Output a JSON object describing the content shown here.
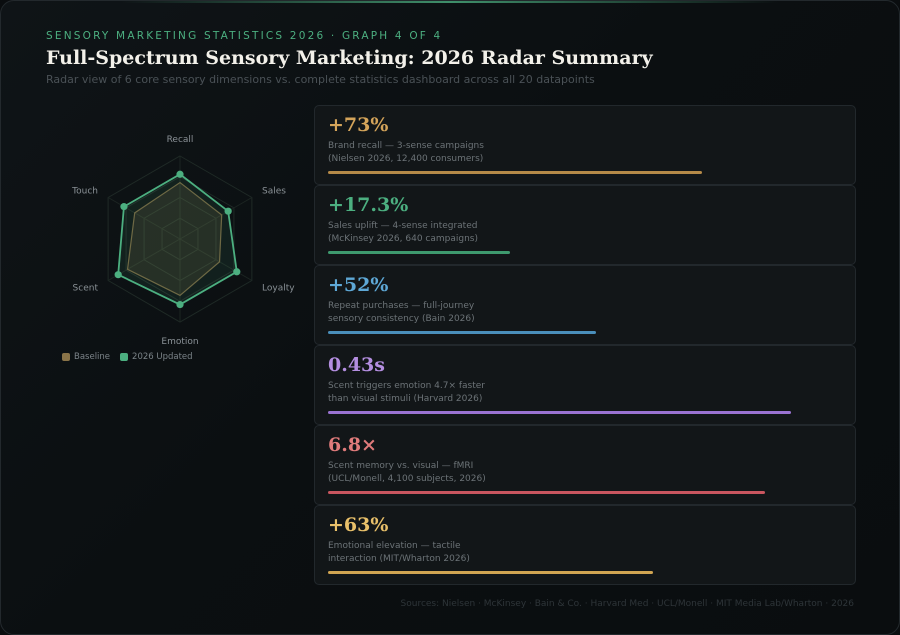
{
  "header": {
    "eyebrow": "SENSORY MARKETING STATISTICS 2026 · GRAPH 4 OF 4",
    "title": "Full-Spectrum Sensory Marketing: 2026 Radar Summary",
    "subtitle": "Radar view of 6 core sensory dimensions vs. complete statistics dashboard across all 20 datapoints"
  },
  "chart_data": [
    {
      "type": "radar",
      "categories": [
        "Recall",
        "Sales",
        "Loyalty",
        "Emotion",
        "Scent",
        "Touch"
      ],
      "range": [
        0,
        100
      ],
      "rings": 4,
      "series": [
        {
          "name": "Baseline",
          "values": [
            68,
            58,
            55,
            68,
            73,
            63
          ],
          "color": "#8a7448"
        },
        {
          "name": "2026 Updated",
          "values": [
            78,
            67,
            79,
            79,
            86,
            78
          ],
          "color": "#4caf80"
        }
      ],
      "legend_position": "bottom-left"
    },
    {
      "type": "bar",
      "orientation": "horizontal",
      "cards": [
        {
          "value": "+73%",
          "desc_line1": "Brand recall — 3-sense campaigns",
          "desc_line2": "(Nielsen 2026, 12,400 consumers)",
          "bar_fraction": 0.72,
          "color": "#d4a45a",
          "bar_color": "#b58a48"
        },
        {
          "value": "+17.3%",
          "desc_line1": "Sales uplift — 4-sense integrated",
          "desc_line2": "(McKinsey 2026, 640 campaigns)",
          "bar_fraction": 0.35,
          "color": "#4caf80",
          "bar_color": "#3e9a6e"
        },
        {
          "value": "+52%",
          "desc_line1": "Repeat purchases — full-journey",
          "desc_line2": "sensory consistency (Bain 2026)",
          "bar_fraction": 0.515,
          "color": "#5ea8d6",
          "bar_color": "#4a8fbb"
        },
        {
          "value": "0.43s",
          "desc_line1": "Scent triggers emotion 4.7× faster",
          "desc_line2": "than visual stimuli (Harvard 2026)",
          "bar_fraction": 0.89,
          "color": "#b48ee0",
          "bar_color": "#9a73d2"
        },
        {
          "value": "6.8×",
          "desc_line1": "Scent memory vs. visual — fMRI",
          "desc_line2": "(UCL/Monell, 4,100 subjects, 2026)",
          "bar_fraction": 0.84,
          "color": "#e07b7b",
          "bar_color": "#c9565f"
        },
        {
          "value": "+63%",
          "desc_line1": "Emotional elevation — tactile",
          "desc_line2": "interaction (MIT/Wharton 2026)",
          "bar_fraction": 0.625,
          "color": "#e8c06a",
          "bar_color": "#d1a552"
        }
      ]
    }
  ],
  "footer": "Sources: Nielsen · McKinsey · Bain & Co. · Harvard Med · UCL/Monell · MIT Media Lab/Wharton · 2026"
}
